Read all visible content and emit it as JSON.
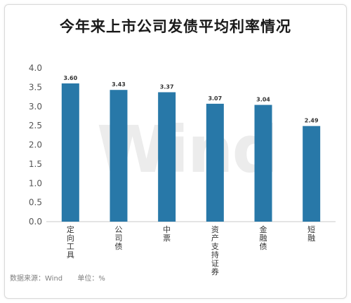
{
  "chart_data": {
    "type": "bar",
    "title": "今年来上市公司发债平均利率情况",
    "categories": [
      "定向工具",
      "公司债",
      "中票",
      "资产支持证券",
      "金融债",
      "短融"
    ],
    "values": [
      3.6,
      3.43,
      3.37,
      3.07,
      3.04,
      2.49
    ],
    "value_labels": [
      "3.60",
      "3.43",
      "3.37",
      "3.07",
      "3.04",
      "2.49"
    ],
    "ylim": [
      0,
      4.0
    ],
    "yticks": [
      "0.0",
      "0.5",
      "1.0",
      "1.5",
      "2.0",
      "2.5",
      "3.0",
      "3.5",
      "4.0"
    ],
    "bar_color": "#2878a8",
    "grid": false,
    "xlabel": "",
    "ylabel": ""
  },
  "footer": {
    "source": "数据来源：Wind",
    "unit": "单位：%"
  },
  "watermark": "Wind"
}
